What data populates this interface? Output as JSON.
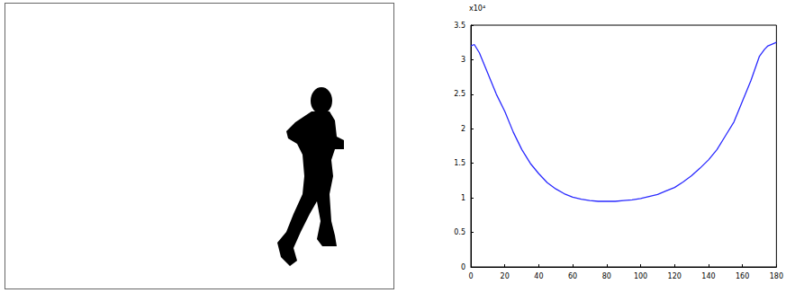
{
  "chart_data": {
    "type": "line",
    "annotations": [
      "x10⁴"
    ],
    "x": [
      0,
      2,
      5,
      10,
      15,
      20,
      25,
      30,
      35,
      40,
      45,
      50,
      55,
      60,
      65,
      70,
      75,
      80,
      85,
      90,
      95,
      100,
      105,
      110,
      115,
      120,
      125,
      130,
      135,
      140,
      145,
      150,
      155,
      160,
      165,
      170,
      173,
      175,
      180
    ],
    "values": [
      3.2,
      3.22,
      3.1,
      2.8,
      2.5,
      2.25,
      1.95,
      1.7,
      1.5,
      1.35,
      1.22,
      1.13,
      1.06,
      1.01,
      0.98,
      0.96,
      0.95,
      0.95,
      0.95,
      0.96,
      0.97,
      0.99,
      1.02,
      1.05,
      1.1,
      1.15,
      1.23,
      1.32,
      1.43,
      1.55,
      1.7,
      1.9,
      2.1,
      2.4,
      2.7,
      3.05,
      3.15,
      3.2,
      3.25
    ],
    "color": "#2a2aff",
    "xlim": [
      0,
      180
    ],
    "xticks": [
      0,
      20,
      40,
      60,
      80,
      100,
      120,
      140,
      160,
      180
    ],
    "ylim": [
      0,
      3.5
    ],
    "yticks": [
      0,
      0.5,
      1,
      1.5,
      2,
      2.5,
      3,
      3.5
    ],
    "grid": false
  }
}
